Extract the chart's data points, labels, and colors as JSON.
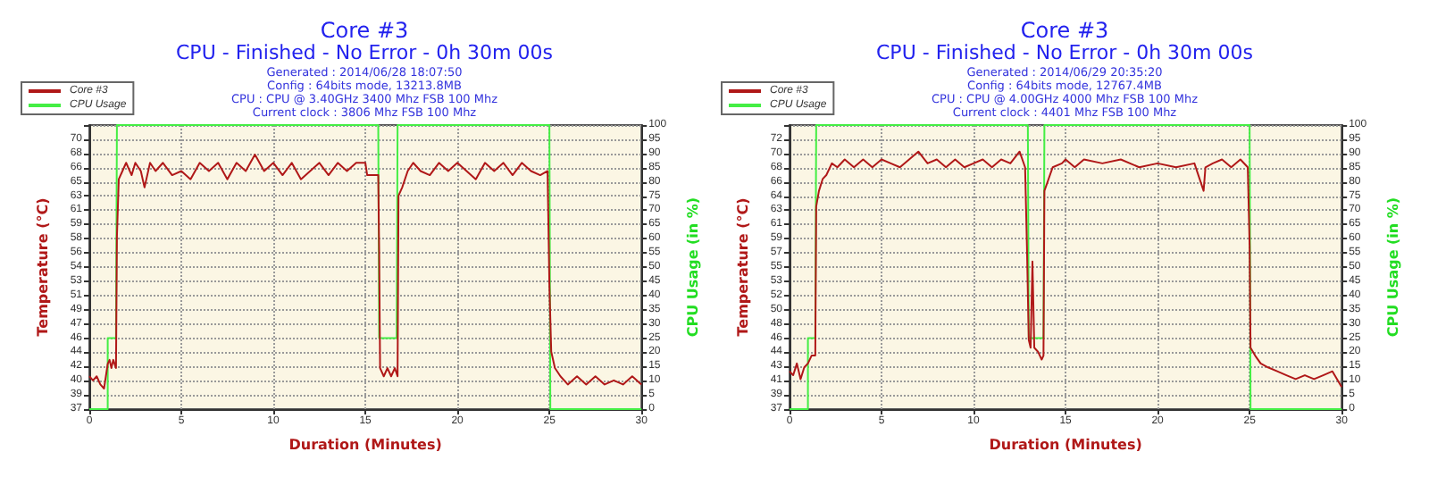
{
  "chart_data": [
    {
      "type": "line",
      "title": "Core #3",
      "subtitle": "CPU - Finished - No Error - 0h 30m 00s",
      "annotations": [
        "Generated : 2014/06/28 18:07:50",
        "Config : 64bits mode, 13213.8MB",
        "CPU : CPU @ 3.40GHz 3400 Mhz FSB 100 Mhz",
        "Current clock : 3806 Mhz FSB 100 Mhz"
      ],
      "xlabel": "Duration (Minutes)",
      "ylabel": "Temperature (°C)",
      "y2label": "CPU Usage (in %)",
      "xlim": [
        0,
        30
      ],
      "xticks": [
        0,
        5,
        10,
        15,
        20,
        25,
        30
      ],
      "ylim": [
        37,
        71.6
      ],
      "yticks": [
        37,
        {
          "value": 38.73,
          "label": "39"
        },
        {
          "value": 40.46,
          "label": "40"
        },
        {
          "value": 42.19,
          "label": "42"
        },
        {
          "value": 43.92,
          "label": "44"
        },
        {
          "value": 45.65,
          "label": "46"
        },
        {
          "value": 47.38,
          "label": "47"
        },
        {
          "value": 49.11,
          "label": "49"
        },
        {
          "value": 50.84,
          "label": "51"
        },
        {
          "value": 52.57,
          "label": "53"
        },
        {
          "value": 54.3,
          "label": "54"
        },
        {
          "value": 56.03,
          "label": "56"
        },
        {
          "value": 57.76,
          "label": "58"
        },
        {
          "value": 59.49,
          "label": "59"
        },
        {
          "value": 61.22,
          "label": "61"
        },
        {
          "value": 62.95,
          "label": "63"
        },
        {
          "value": 64.68,
          "label": "65"
        },
        {
          "value": 66.41,
          "label": "66"
        },
        {
          "value": 68.14,
          "label": "68"
        },
        {
          "value": 69.87,
          "label": "70"
        },
        {
          "value": 71.6,
          "label": null
        }
      ],
      "y2lim": [
        0,
        100
      ],
      "y2ticks": [
        0,
        5,
        10,
        15,
        20,
        25,
        30,
        35,
        40,
        45,
        50,
        55,
        60,
        65,
        70,
        75,
        80,
        85,
        90,
        95,
        100
      ],
      "grid": true,
      "legend": "top left",
      "marker": "none",
      "series": [
        {
          "name": "Core #3",
          "color": "#b01818",
          "x": [
            0,
            0.2,
            0.4,
            0.6,
            0.8,
            0.9,
            1.0,
            1.1,
            1.2,
            1.3,
            1.45,
            1.5,
            1.6,
            1.8,
            2.0,
            2.3,
            2.5,
            2.8,
            3.0,
            3.3,
            3.6,
            4.0,
            4.5,
            5.0,
            5.5,
            6.0,
            6.5,
            7.0,
            7.5,
            8.0,
            8.5,
            9.0,
            9.5,
            10.0,
            10.5,
            11.0,
            11.5,
            12.0,
            12.5,
            13.0,
            13.5,
            14.0,
            14.5,
            15.0,
            15.1,
            15.7,
            15.75,
            15.8,
            16.0,
            16.2,
            16.4,
            16.6,
            16.75,
            16.8,
            17.0,
            17.3,
            17.6,
            18.0,
            18.5,
            19.0,
            19.5,
            20.0,
            20.5,
            21.0,
            21.5,
            22.0,
            22.5,
            23.0,
            23.5,
            24.0,
            24.5,
            24.9,
            25.0,
            25.1,
            25.3,
            25.6,
            26.0,
            26.5,
            27.0,
            27.5,
            28.0,
            28.5,
            29.0,
            29.5,
            30
          ],
          "values": [
            41,
            40.5,
            41,
            40,
            39.5,
            41,
            42.5,
            43,
            42,
            43,
            42,
            58,
            65,
            66,
            67,
            65.5,
            67,
            66,
            64,
            67,
            66,
            67,
            65.5,
            66,
            65,
            67,
            66,
            67,
            65,
            67,
            66,
            68,
            66,
            67,
            65.5,
            67,
            65,
            66,
            67,
            65.5,
            67,
            66,
            67,
            67,
            65.5,
            65.5,
            56,
            42,
            41,
            42,
            41,
            42,
            41,
            63,
            64,
            66,
            67,
            66,
            65.5,
            67,
            66,
            67,
            66,
            65,
            67,
            66,
            67,
            65.5,
            67,
            66,
            65.5,
            66,
            52,
            44,
            42,
            41,
            40,
            41,
            40,
            41,
            40,
            40.5,
            40,
            41,
            40
          ]
        },
        {
          "name": "CPU Usage",
          "color": "#44ee44",
          "axis": "y2",
          "x": [
            0,
            1,
            1,
            1.45,
            1.5,
            15.7,
            15.75,
            16.7,
            16.75,
            25,
            25.05,
            30
          ],
          "values": [
            0,
            0,
            25,
            25,
            100,
            100,
            25,
            25,
            100,
            100,
            0,
            0
          ]
        }
      ]
    },
    {
      "type": "line",
      "title": "Core #3",
      "subtitle": "CPU - Finished - No Error - 0h 30m 00s",
      "annotations": [
        "Generated : 2014/06/29 20:35:20",
        "Config : 64bits mode, 12767.4MB",
        "CPU : CPU @ 4.00GHz 4000 Mhz FSB 100 Mhz",
        "Current clock : 4401 Mhz FSB 100 Mhz"
      ],
      "xlabel": "Duration (Minutes)",
      "ylabel": "Temperature (°C)",
      "y2label": "CPU Usage (in %)",
      "xlim": [
        0,
        30
      ],
      "xticks": [
        0,
        5,
        10,
        15,
        20,
        25,
        30
      ],
      "ylim": [
        37.18,
        73.38
      ],
      "yticks": [
        {
          "value": 37.18,
          "label": "37"
        },
        {
          "value": 38.99,
          "label": "39"
        },
        {
          "value": 40.8,
          "label": "41"
        },
        {
          "value": 42.61,
          "label": "43"
        },
        {
          "value": 44.42,
          "label": "44"
        },
        {
          "value": 46.23,
          "label": "46"
        },
        {
          "value": 48.04,
          "label": "48"
        },
        {
          "value": 49.85,
          "label": "50"
        },
        {
          "value": 51.66,
          "label": "52"
        },
        {
          "value": 53.47,
          "label": "53"
        },
        {
          "value": 55.28,
          "label": "55"
        },
        {
          "value": 57.09,
          "label": "57"
        },
        {
          "value": 58.9,
          "label": "59"
        },
        {
          "value": 60.71,
          "label": "61"
        },
        {
          "value": 62.52,
          "label": "63"
        },
        {
          "value": 64.33,
          "label": "64"
        },
        {
          "value": 66.14,
          "label": "66"
        },
        {
          "value": 67.95,
          "label": "68"
        },
        {
          "value": 69.76,
          "label": "70"
        },
        {
          "value": 71.57,
          "label": "72"
        },
        {
          "value": 73.38,
          "label": null
        }
      ],
      "y2lim": [
        0,
        100
      ],
      "y2ticks": [
        0,
        5,
        10,
        15,
        20,
        25,
        30,
        35,
        40,
        45,
        50,
        55,
        60,
        65,
        70,
        75,
        80,
        85,
        90,
        95,
        100
      ],
      "grid": true,
      "legend": "top left",
      "marker": "none",
      "series": [
        {
          "name": "Core #3",
          "color": "#b01818",
          "x": [
            0,
            0.2,
            0.4,
            0.6,
            0.8,
            1.0,
            1.2,
            1.4,
            1.45,
            1.6,
            1.8,
            2.0,
            2.3,
            2.6,
            3.0,
            3.5,
            4.0,
            4.5,
            5.0,
            5.5,
            6.0,
            6.5,
            7.0,
            7.5,
            8.0,
            8.5,
            9.0,
            9.5,
            10.0,
            10.5,
            11.0,
            11.5,
            12.0,
            12.5,
            12.8,
            12.9,
            13.0,
            13.1,
            13.2,
            13.3,
            13.5,
            13.7,
            13.8,
            13.85,
            14.0,
            14.3,
            14.8,
            15.0,
            15.5,
            16.0,
            17.0,
            18.0,
            19.0,
            20.0,
            21.0,
            22.0,
            22.5,
            22.6,
            23.0,
            23.5,
            24.0,
            24.5,
            24.9,
            25.0,
            25.05,
            25.3,
            25.6,
            26.0,
            26.5,
            27.0,
            27.5,
            28.0,
            28.5,
            29.0,
            29.5,
            30
          ],
          "values": [
            42,
            41.5,
            43,
            41,
            42.5,
            43,
            44,
            44,
            63,
            65,
            66.5,
            67,
            68.5,
            68,
            69,
            68,
            69,
            68,
            69,
            68.5,
            68,
            69,
            70,
            68.5,
            69,
            68,
            69,
            68,
            68.5,
            69,
            68,
            69,
            68.5,
            70,
            68,
            58,
            46,
            45,
            56,
            45,
            44.5,
            43.5,
            44,
            65,
            66,
            68,
            68.5,
            69,
            68,
            69,
            68.5,
            69,
            68,
            68.5,
            68,
            68.5,
            65,
            68,
            68.5,
            69,
            68,
            69,
            68,
            58,
            45,
            44,
            43,
            42.5,
            42,
            41.5,
            41,
            41.5,
            41,
            41.5,
            42,
            40
          ]
        },
        {
          "name": "CPU Usage",
          "color": "#44ee44",
          "axis": "y2",
          "x": [
            0,
            1,
            1,
            1.4,
            1.45,
            12.95,
            13.0,
            13.8,
            13.85,
            25,
            25.05,
            30
          ],
          "values": [
            0,
            0,
            25,
            25,
            100,
            100,
            25,
            25,
            100,
            100,
            0,
            0
          ]
        }
      ]
    }
  ]
}
